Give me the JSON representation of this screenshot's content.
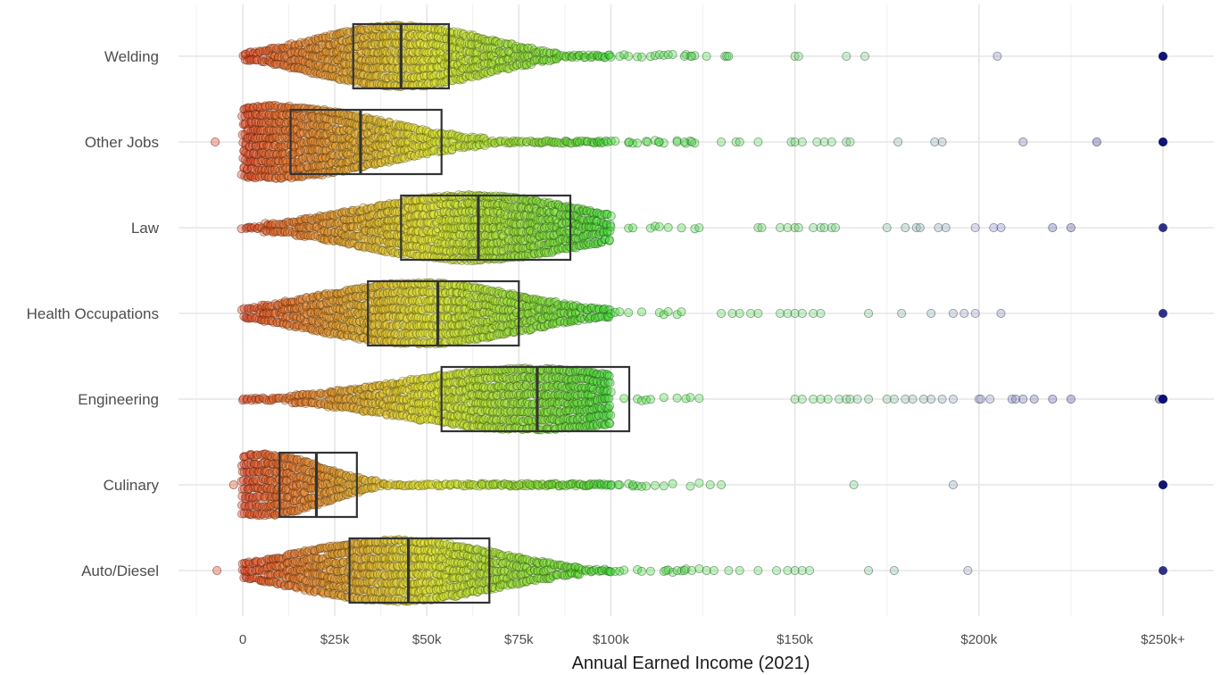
{
  "chart_data": {
    "type": "beeswarm-boxplot",
    "xlabel": "Annual Earned Income (2021)",
    "ylabel": "",
    "xlim": [
      -12000,
      262000
    ],
    "x_ticks": [
      0,
      25000,
      50000,
      75000,
      100000,
      150000,
      200000,
      250000
    ],
    "x_tick_labels": [
      "0",
      "$25k",
      "$50k",
      "$75k",
      "$100k",
      "$150k",
      "$200k",
      "$250k+"
    ],
    "grid": true,
    "color_scale": {
      "stops": [
        {
          "value": 0,
          "color": "#e0401a"
        },
        {
          "value": 50000,
          "color": "#dde01a"
        },
        {
          "value": 100000,
          "color": "#39d62b"
        },
        {
          "value": 160000,
          "color": "#6fd47a"
        },
        {
          "value": 200000,
          "color": "#9c9ccf"
        },
        {
          "value": 250000,
          "color": "#0a0f7a"
        }
      ]
    },
    "categories": [
      "Welding",
      "Other Jobs",
      "Law",
      "Health Occupations",
      "Engineering",
      "Culinary",
      "Auto/Diesel"
    ],
    "series": [
      {
        "category": "Welding",
        "q1": 30000,
        "median": 43000,
        "q3": 56000,
        "peak": 43000,
        "spread": 23000,
        "max_width": 38,
        "outliers": [
          120000,
          122000,
          126000,
          131000,
          131500,
          132000,
          150000,
          151000,
          164000,
          169000,
          205000,
          250000,
          250000
        ]
      },
      {
        "category": "Other Jobs",
        "q1": 13000,
        "median": 32000,
        "q3": 54000,
        "peak": 8000,
        "spread": 30000,
        "max_width": 44,
        "outliers": [
          -7500,
          105000,
          110000,
          113000,
          118000,
          120000,
          122000,
          130000,
          134000,
          135000,
          140000,
          149000,
          150000,
          152000,
          156000,
          158000,
          160000,
          164000,
          165000,
          178000,
          188000,
          190000,
          212000,
          232000,
          250000,
          250000
        ]
      },
      {
        "category": "Law",
        "q1": 43000,
        "median": 64000,
        "q3": 89000,
        "peak": 62000,
        "spread": 30000,
        "max_width": 40,
        "outliers": [
          140000,
          141000,
          146000,
          148000,
          150000,
          151000,
          155000,
          157000,
          158000,
          160000,
          161000,
          175000,
          180000,
          183000,
          184000,
          189000,
          191000,
          199000,
          204000,
          206000,
          220000,
          225000,
          250000
        ]
      },
      {
        "category": "Health Occupations",
        "q1": 34000,
        "median": 53000,
        "q3": 75000,
        "peak": 48000,
        "spread": 28000,
        "max_width": 38,
        "outliers": [
          130000,
          133000,
          135000,
          138000,
          140000,
          146000,
          148000,
          150000,
          152000,
          155000,
          157000,
          170000,
          179000,
          187000,
          193000,
          196000,
          199000,
          206000,
          250000
        ]
      },
      {
        "category": "Engineering",
        "q1": 54000,
        "median": 80000,
        "q3": 105000,
        "peak": 78000,
        "spread": 35000,
        "max_width": 38,
        "outliers": [
          150000,
          152000,
          155000,
          157000,
          159000,
          162000,
          164000,
          165000,
          167000,
          170000,
          175000,
          177000,
          180000,
          182000,
          185000,
          187000,
          190000,
          193000,
          200000,
          200500,
          203000,
          209000,
          210000,
          212000,
          215000,
          220000,
          225000,
          249000,
          250000,
          250000,
          250000
        ]
      },
      {
        "category": "Culinary",
        "q1": 10000,
        "median": 20000,
        "q3": 31000,
        "peak": 5000,
        "spread": 17000,
        "max_width": 38,
        "outliers": [
          -2500,
          65000,
          68000,
          72000,
          75000,
          78000,
          80000,
          83000,
          84000,
          89000,
          94000,
          102000,
          106000,
          127000,
          130000,
          166000,
          193000,
          250000,
          250000
        ]
      },
      {
        "category": "Auto/Diesel",
        "q1": 29000,
        "median": 45000,
        "q3": 67000,
        "peak": 42000,
        "spread": 27000,
        "max_width": 38,
        "outliers": [
          -7000,
          115000,
          118000,
          120000,
          122000,
          126000,
          128000,
          132000,
          135000,
          140000,
          145000,
          148000,
          150000,
          152000,
          154000,
          170000,
          177000,
          197000,
          250000
        ]
      }
    ]
  }
}
